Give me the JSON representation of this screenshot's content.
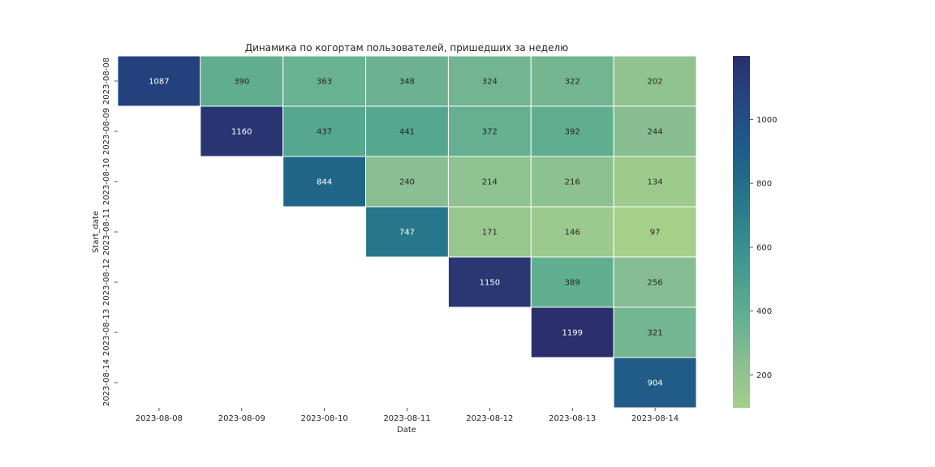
{
  "chart_data": {
    "type": "heatmap",
    "title": "Динамика по когортам пользователей, пришедших за неделю",
    "xlabel": "Date",
    "ylabel": "Start_date",
    "x": [
      "2023-08-08",
      "2023-08-09",
      "2023-08-10",
      "2023-08-11",
      "2023-08-12",
      "2023-08-13",
      "2023-08-14"
    ],
    "y": [
      "2023-08-08",
      "2023-08-09",
      "2023-08-10",
      "2023-08-11",
      "2023-08-12",
      "2023-08-13",
      "2023-08-14"
    ],
    "values": [
      [
        1087,
        390,
        363,
        348,
        324,
        322,
        202
      ],
      [
        null,
        1160,
        437,
        441,
        372,
        392,
        244
      ],
      [
        null,
        null,
        844,
        240,
        214,
        216,
        134
      ],
      [
        null,
        null,
        null,
        747,
        171,
        146,
        97
      ],
      [
        null,
        null,
        null,
        null,
        1150,
        389,
        256
      ],
      [
        null,
        null,
        null,
        null,
        null,
        1199,
        321
      ],
      [
        null,
        null,
        null,
        null,
        null,
        null,
        904
      ]
    ],
    "colorbar": {
      "ticks": [
        200,
        400,
        600,
        800,
        1000
      ],
      "range": [
        97,
        1199
      ],
      "colormap": "YlGnBu-like (crest)",
      "colors": [
        "#a6cf8a",
        "#86bd93",
        "#5bab90",
        "#3c9590",
        "#287b8c",
        "#1f5f88",
        "#234984",
        "#2b2f6c"
      ]
    },
    "grid": false,
    "annotations": true
  }
}
